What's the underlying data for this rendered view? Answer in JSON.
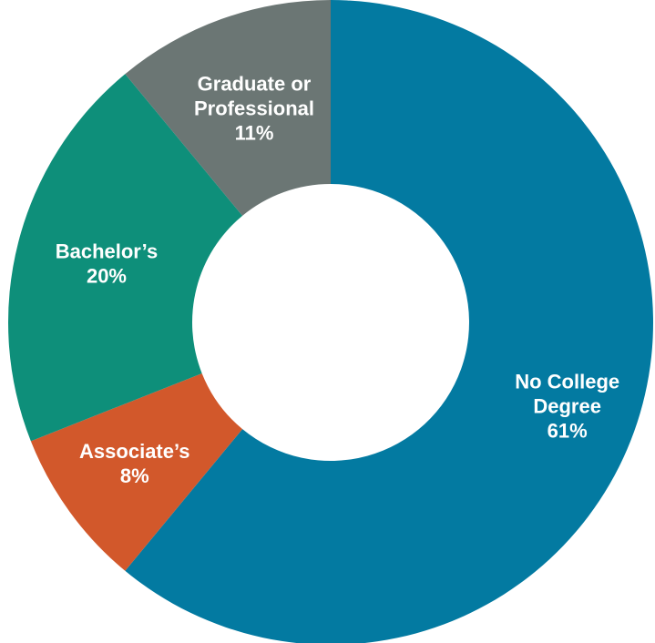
{
  "chart_data": {
    "type": "pie",
    "donut": true,
    "slices": [
      {
        "name": "No College Degree",
        "value": 61,
        "label_lines": [
          "No College",
          "Degree",
          "61%"
        ],
        "color": "#037aa1"
      },
      {
        "name": "Associate's",
        "value": 8,
        "label_lines": [
          "Associate’s",
          "8%"
        ],
        "color": "#d2582b"
      },
      {
        "name": "Bachelor's",
        "value": 20,
        "label_lines": [
          "Bachelor’s",
          "20%"
        ],
        "color": "#0e8f7a"
      },
      {
        "name": "Graduate or Professional",
        "value": 11,
        "label_lines": [
          "Graduate or",
          "Professional",
          "11%"
        ],
        "color": "#6b7674"
      }
    ],
    "start": "top",
    "direction": "clockwise"
  }
}
